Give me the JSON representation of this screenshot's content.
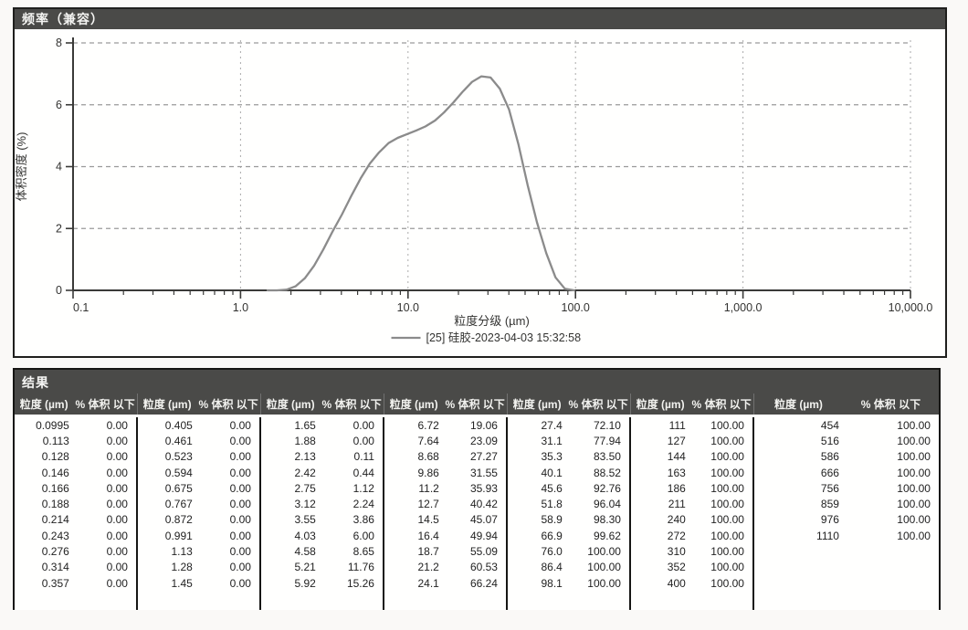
{
  "chart": {
    "panel_title": "频率（兼容）",
    "y_axis": {
      "label": "体积密度 (%)",
      "ticks": [
        0,
        2,
        4,
        6,
        8
      ]
    },
    "x_axis": {
      "label": "粒度分级 (µm)",
      "tick_labels": [
        "0.1",
        "1.0",
        "10.0",
        "100.0",
        "1,000.0",
        "10,000.0"
      ]
    },
    "legend": {
      "series_label": "[25] 硅胶-2023-04-03 15:32:58"
    },
    "colors": {
      "header_bar": "#4a4a48",
      "curve": "#8b8b8b",
      "grid_h": "#9a9a9a",
      "grid_v": "#aaaaaa",
      "axis": "#3a3a38"
    }
  },
  "chart_data": {
    "type": "line",
    "title": "频率（兼容）",
    "xlabel": "粒度分级 (µm)",
    "ylabel": "体积密度 (%)",
    "x_scale": "log",
    "xlim": [
      0.1,
      10000
    ],
    "ylim": [
      0,
      8.5
    ],
    "grid": true,
    "legend_position": "bottom",
    "series": [
      {
        "name": "[25] 硅胶-2023-04-03 15:32:58",
        "x": [
          1.45,
          1.65,
          1.88,
          2.13,
          2.42,
          2.75,
          3.12,
          3.55,
          4.03,
          4.58,
          5.21,
          5.92,
          6.72,
          7.64,
          8.68,
          9.86,
          11.2,
          12.7,
          14.5,
          16.4,
          18.7,
          21.2,
          24.1,
          27.4,
          31.1,
          35.3,
          40.1,
          45.6,
          51.8,
          58.9,
          66.9,
          76.0,
          86.4,
          98.1
        ],
        "y": [
          0,
          0,
          0.02,
          0.13,
          0.39,
          0.8,
          1.32,
          1.91,
          2.45,
          3.05,
          3.62,
          4.1,
          4.46,
          4.76,
          4.93,
          5.05,
          5.17,
          5.3,
          5.49,
          5.75,
          6.08,
          6.42,
          6.74,
          6.92,
          6.88,
          6.52,
          5.85,
          4.72,
          3.4,
          2.2,
          1.2,
          0.42,
          0.05,
          0
        ]
      }
    ]
  },
  "results_table": {
    "title": "结果",
    "column_headers": {
      "size": "粒度 (µm)",
      "pct": "% 体积 以下"
    },
    "groups": [
      {
        "rows": [
          [
            "0.0995",
            "0.00"
          ],
          [
            "0.113",
            "0.00"
          ],
          [
            "0.128",
            "0.00"
          ],
          [
            "0.146",
            "0.00"
          ],
          [
            "0.166",
            "0.00"
          ],
          [
            "0.188",
            "0.00"
          ],
          [
            "0.214",
            "0.00"
          ],
          [
            "0.243",
            "0.00"
          ],
          [
            "0.276",
            "0.00"
          ],
          [
            "0.314",
            "0.00"
          ],
          [
            "0.357",
            "0.00"
          ]
        ]
      },
      {
        "rows": [
          [
            "0.405",
            "0.00"
          ],
          [
            "0.461",
            "0.00"
          ],
          [
            "0.523",
            "0.00"
          ],
          [
            "0.594",
            "0.00"
          ],
          [
            "0.675",
            "0.00"
          ],
          [
            "0.767",
            "0.00"
          ],
          [
            "0.872",
            "0.00"
          ],
          [
            "0.991",
            "0.00"
          ],
          [
            "1.13",
            "0.00"
          ],
          [
            "1.28",
            "0.00"
          ],
          [
            "1.45",
            "0.00"
          ]
        ]
      },
      {
        "rows": [
          [
            "1.65",
            "0.00"
          ],
          [
            "1.88",
            "0.00"
          ],
          [
            "2.13",
            "0.11"
          ],
          [
            "2.42",
            "0.44"
          ],
          [
            "2.75",
            "1.12"
          ],
          [
            "3.12",
            "2.24"
          ],
          [
            "3.55",
            "3.86"
          ],
          [
            "4.03",
            "6.00"
          ],
          [
            "4.58",
            "8.65"
          ],
          [
            "5.21",
            "11.76"
          ],
          [
            "5.92",
            "15.26"
          ]
        ]
      },
      {
        "rows": [
          [
            "6.72",
            "19.06"
          ],
          [
            "7.64",
            "23.09"
          ],
          [
            "8.68",
            "27.27"
          ],
          [
            "9.86",
            "31.55"
          ],
          [
            "11.2",
            "35.93"
          ],
          [
            "12.7",
            "40.42"
          ],
          [
            "14.5",
            "45.07"
          ],
          [
            "16.4",
            "49.94"
          ],
          [
            "18.7",
            "55.09"
          ],
          [
            "21.2",
            "60.53"
          ],
          [
            "24.1",
            "66.24"
          ]
        ]
      },
      {
        "rows": [
          [
            "27.4",
            "72.10"
          ],
          [
            "31.1",
            "77.94"
          ],
          [
            "35.3",
            "83.50"
          ],
          [
            "40.1",
            "88.52"
          ],
          [
            "45.6",
            "92.76"
          ],
          [
            "51.8",
            "96.04"
          ],
          [
            "58.9",
            "98.30"
          ],
          [
            "66.9",
            "99.62"
          ],
          [
            "76.0",
            "100.00"
          ],
          [
            "86.4",
            "100.00"
          ],
          [
            "98.1",
            "100.00"
          ]
        ]
      },
      {
        "rows": [
          [
            "111",
            "100.00"
          ],
          [
            "127",
            "100.00"
          ],
          [
            "144",
            "100.00"
          ],
          [
            "163",
            "100.00"
          ],
          [
            "186",
            "100.00"
          ],
          [
            "211",
            "100.00"
          ],
          [
            "240",
            "100.00"
          ],
          [
            "272",
            "100.00"
          ],
          [
            "310",
            "100.00"
          ],
          [
            "352",
            "100.00"
          ],
          [
            "400",
            "100.00"
          ]
        ]
      },
      {
        "rows": [
          [
            "454",
            "100.00"
          ],
          [
            "516",
            "100.00"
          ],
          [
            "586",
            "100.00"
          ],
          [
            "666",
            "100.00"
          ],
          [
            "756",
            "100.00"
          ],
          [
            "859",
            "100.00"
          ],
          [
            "976",
            "100.00"
          ],
          [
            "1110",
            "100.00"
          ]
        ]
      }
    ]
  }
}
